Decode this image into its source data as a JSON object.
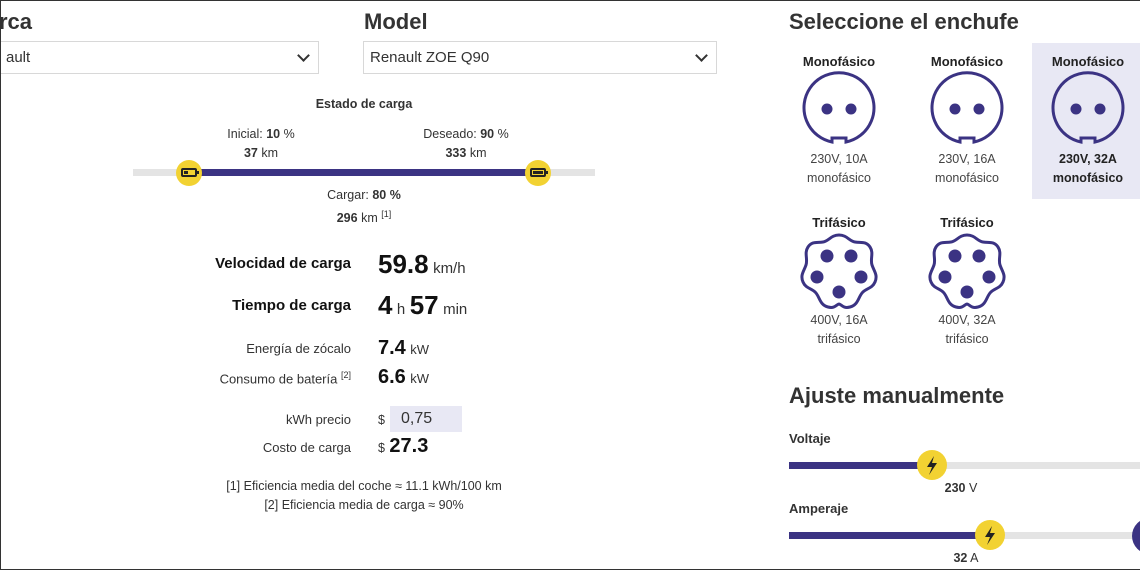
{
  "header": {
    "marca_label": "rca",
    "marca_value": "ault",
    "model_label": "Model",
    "model_value": "Renault ZOE Q90"
  },
  "charge_state": {
    "title": "Estado de carga",
    "initial_label": "Inicial:",
    "initial_pct": "10",
    "initial_km": "37",
    "desired_label": "Deseado:",
    "desired_pct": "90",
    "desired_km": "333",
    "charge_label": "Cargar:",
    "charge_pct": "80 %",
    "charge_km": "296",
    "pct_unit": "%",
    "km_unit": "km",
    "note_ref": "[1]",
    "initial_fraction": 0.1,
    "desired_fraction": 0.9
  },
  "results": {
    "speed_label": "Velocidad de carga",
    "speed_value": "59.8",
    "speed_unit": "km/h",
    "time_label": "Tiempo de carga",
    "time_hours": "4",
    "time_h_unit": "h",
    "time_minutes": "57",
    "time_min_unit": "min",
    "socket_energy_label": "Energía de zócalo",
    "socket_energy_value": "7.4",
    "socket_energy_unit": "kW",
    "battery_consumption_label": "Consumo de batería",
    "battery_consumption_ref": "[2]",
    "battery_consumption_value": "6.6",
    "battery_consumption_unit": "kW",
    "kwh_price_label": "kWh precio",
    "currency": "$",
    "kwh_price_value": "0,75",
    "charge_cost_label": "Costo de carga",
    "charge_cost_value": "27.3"
  },
  "footnotes": {
    "note1": "[1] Eficiencia media del coche ≈ 11.1 kWh/100 km",
    "note2": "[2] Eficiencia media de carga ≈ 90%"
  },
  "plugs": {
    "title": "Seleccione el enchufe",
    "items": [
      {
        "title": "Monofásico",
        "line1": "230V, 10A",
        "line2": "monofásico",
        "icon": "single-phase-plug-icon",
        "selected": false
      },
      {
        "title": "Monofásico",
        "line1": "230V, 16A",
        "line2": "monofásico",
        "icon": "single-phase-plug-icon",
        "selected": false
      },
      {
        "title": "Monofásico",
        "line1": "230V, 32A",
        "line2": "monofásico",
        "icon": "single-phase-plug-icon",
        "selected": true
      },
      {
        "title": "Trifásico",
        "line1": "400V, 16A",
        "line2": "trifásico",
        "icon": "three-phase-plug-icon",
        "selected": false
      },
      {
        "title": "Trifásico",
        "line1": "400V, 32A",
        "line2": "trifásico",
        "icon": "three-phase-plug-icon",
        "selected": false
      }
    ]
  },
  "manual": {
    "title": "Ajuste manualmente",
    "voltage_label": "Voltaje",
    "voltage_value": "230",
    "voltage_unit": "V",
    "amperage_label": "Amperaje",
    "amperage_value": "32",
    "amperage_unit": "A"
  },
  "colors": {
    "accent": "#3b3383",
    "knob": "#f2d232",
    "selected_bg": "#e8e8f4"
  }
}
